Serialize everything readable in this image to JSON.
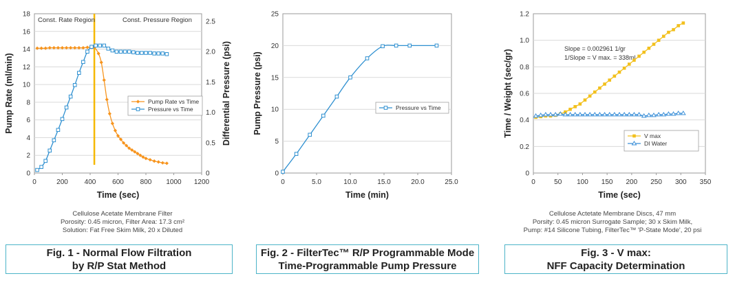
{
  "figures": [
    {
      "caption": [
        "Fig. 1 - Normal Flow Filtration",
        "by R/P Stat Method"
      ],
      "notes": [
        "Cellulose Acetate Membrane Filter",
        "Porosity: 0.45 micron, Filter Area: 17.3 cm²",
        "Solution: Fat Free Skim Milk, 20 x Diluted"
      ]
    },
    {
      "caption": [
        "Fig. 2 - FilterTec™ R/P Programmable Mode",
        "Time-Programmable Pump Pressure"
      ],
      "notes": []
    },
    {
      "caption": [
        "Fig. 3 - V max:",
        "NFF Capacity Determination"
      ],
      "notes": [
        "Cellulose Actetate Membrane Discs, 47 mm",
        "Porsity: 0.45 micron Surrogate Sample; 30 x Skim Milk,",
        "Pump: #14 Silicone Tubing, FilterTec™ 'P-State Mode', 20 psi"
      ]
    }
  ],
  "chart_data": [
    {
      "type": "line",
      "xlabel": "Time (sec)",
      "ylabel": "Pump Rate (ml/min)",
      "y2label": "Differential Pressure (psi)",
      "xlim": [
        0,
        1200
      ],
      "ylim": [
        0,
        18
      ],
      "y2lim": [
        0,
        2.625
      ],
      "xticks": [
        "0",
        "200",
        "400",
        "600",
        "800",
        "1000",
        "1200"
      ],
      "yticks": [
        "0",
        "2",
        "4",
        "6",
        "8",
        "10",
        "12",
        "14",
        "16",
        "18"
      ],
      "y2ticks": [
        "0",
        "0.5",
        "1.0",
        "1.5",
        "2.0",
        "2.5"
      ],
      "annotations": [
        "Const. Rate Region",
        "Const. Pressure Region"
      ],
      "divider_x": 430,
      "legend": [
        "Pump Rate vs Time",
        "Pressure vs Time"
      ],
      "series": [
        {
          "name": "Pump Rate vs Time",
          "axis": "left",
          "color": "#f7941d",
          "marker": "diamond",
          "x": [
            20,
            50,
            80,
            110,
            140,
            170,
            200,
            230,
            260,
            290,
            320,
            350,
            380,
            410,
            430,
            460,
            480,
            500,
            520,
            540,
            560,
            580,
            600,
            620,
            640,
            660,
            680,
            700,
            720,
            740,
            760,
            780,
            800,
            830,
            860,
            890,
            920,
            950
          ],
          "y": [
            14.1,
            14.1,
            14.1,
            14.15,
            14.15,
            14.15,
            14.15,
            14.15,
            14.15,
            14.15,
            14.15,
            14.15,
            14.2,
            14.2,
            14.2,
            13.5,
            12.5,
            10.5,
            8.3,
            6.7,
            5.6,
            4.8,
            4.2,
            3.8,
            3.4,
            3.1,
            2.8,
            2.6,
            2.4,
            2.2,
            2.0,
            1.8,
            1.65,
            1.5,
            1.35,
            1.25,
            1.15,
            1.1
          ]
        },
        {
          "name": "Pressure vs Time",
          "axis": "right",
          "color": "#2d8fd0",
          "marker": "square",
          "x": [
            20,
            50,
            80,
            110,
            140,
            170,
            200,
            230,
            260,
            290,
            320,
            350,
            380,
            410,
            440,
            470,
            500,
            530,
            560,
            590,
            620,
            650,
            680,
            710,
            740,
            770,
            800,
            830,
            860,
            890,
            920,
            950
          ],
          "y": [
            0.05,
            0.1,
            0.2,
            0.37,
            0.54,
            0.71,
            0.89,
            1.08,
            1.26,
            1.45,
            1.65,
            1.83,
            2.0,
            2.08,
            2.1,
            2.1,
            2.1,
            2.05,
            2.02,
            2.0,
            2.0,
            2.0,
            2.0,
            1.99,
            1.98,
            1.98,
            1.98,
            1.98,
            1.97,
            1.97,
            1.97,
            1.96
          ]
        }
      ]
    },
    {
      "type": "line",
      "xlabel": "Time (min)",
      "ylabel": "Pump Pressure (psi)",
      "xlim": [
        0,
        25
      ],
      "ylim": [
        0,
        25
      ],
      "xticks": [
        "0",
        "5.0",
        "10.0",
        "15.0",
        "20.0",
        "25.0"
      ],
      "yticks": [
        "0",
        "5",
        "10",
        "15",
        "20",
        "25"
      ],
      "legend": [
        "Pressure vs Time"
      ],
      "series": [
        {
          "name": "Pressure vs Time",
          "color": "#2d8fd0",
          "marker": "square",
          "x": [
            0,
            2,
            4,
            6,
            8,
            10,
            12.5,
            14.8,
            16.8,
            18.8,
            22.8
          ],
          "y": [
            0.2,
            3,
            6,
            9,
            12,
            15,
            18,
            19.9,
            20,
            20,
            20
          ]
        }
      ]
    },
    {
      "type": "line",
      "xlabel": "Time (sec)",
      "ylabel": "Time / Weight (sec/gr)",
      "xlim": [
        0,
        350
      ],
      "ylim": [
        0,
        1.2
      ],
      "xticks": [
        "0",
        "50",
        "100",
        "150",
        "200",
        "250",
        "300",
        "350"
      ],
      "yticks": [
        "0",
        "0.2",
        "0.4",
        "0.6",
        "0.8",
        "1.0",
        "1.2"
      ],
      "annotations": [
        "Slope = 0.002961 1/gr",
        "1/Slope = V max. = 338ml"
      ],
      "legend": [
        "V max",
        "DI Water"
      ],
      "series": [
        {
          "name": "V max",
          "color": "#f2c01d",
          "marker": "square",
          "x": [
            5,
            15,
            25,
            35,
            45,
            55,
            65,
            75,
            85,
            95,
            105,
            115,
            125,
            135,
            145,
            155,
            165,
            175,
            185,
            195,
            205,
            215,
            225,
            235,
            245,
            255,
            265,
            275,
            285,
            295,
            305
          ],
          "y": [
            0.42,
            0.425,
            0.43,
            0.43,
            0.435,
            0.445,
            0.46,
            0.48,
            0.5,
            0.52,
            0.55,
            0.58,
            0.61,
            0.64,
            0.67,
            0.7,
            0.73,
            0.76,
            0.79,
            0.82,
            0.85,
            0.88,
            0.91,
            0.94,
            0.97,
            1.0,
            1.03,
            1.06,
            1.08,
            1.11,
            1.13
          ]
        },
        {
          "name": "DI Water",
          "color": "#3a8fd8",
          "marker": "triangle",
          "x": [
            5,
            15,
            25,
            35,
            45,
            55,
            65,
            75,
            85,
            95,
            105,
            115,
            125,
            135,
            145,
            155,
            165,
            175,
            185,
            195,
            205,
            215,
            225,
            235,
            245,
            255,
            265,
            275,
            285,
            295,
            305
          ],
          "y": [
            0.43,
            0.435,
            0.44,
            0.44,
            0.44,
            0.445,
            0.44,
            0.44,
            0.44,
            0.44,
            0.44,
            0.44,
            0.44,
            0.44,
            0.44,
            0.44,
            0.44,
            0.44,
            0.44,
            0.44,
            0.44,
            0.44,
            0.43,
            0.435,
            0.435,
            0.44,
            0.44,
            0.445,
            0.445,
            0.45,
            0.45
          ]
        }
      ]
    }
  ]
}
